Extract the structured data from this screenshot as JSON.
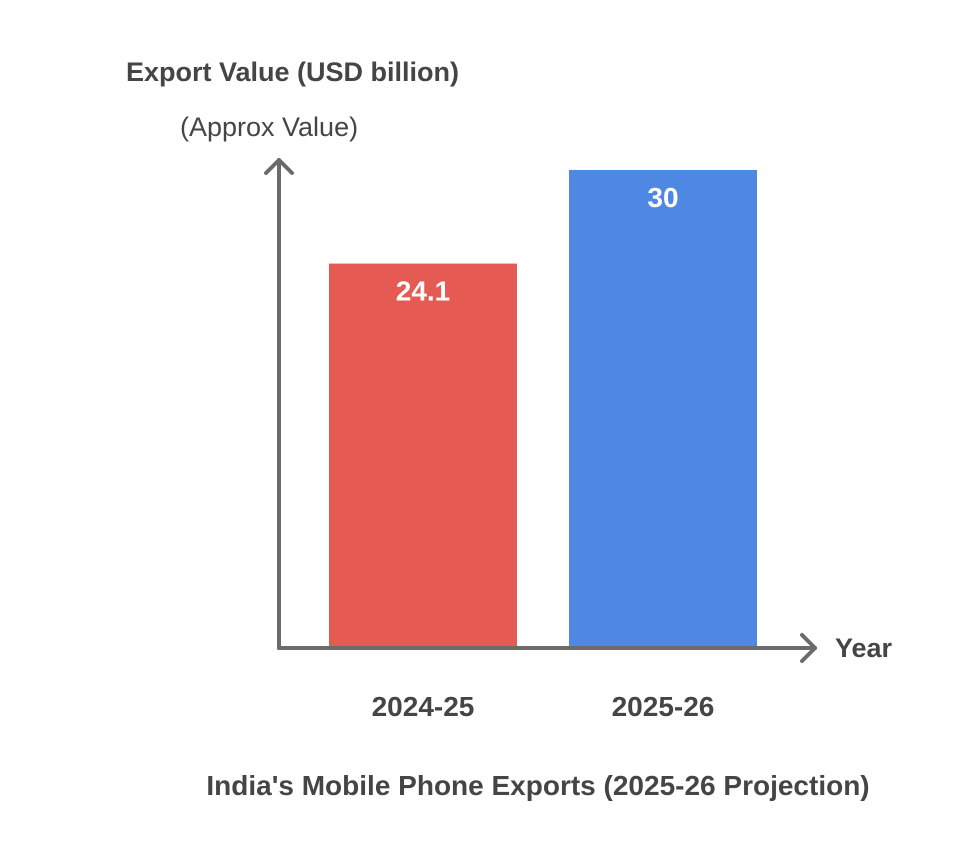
{
  "chart_data": {
    "type": "bar",
    "title": "India's Mobile Phone Exports (2025-26 Projection)",
    "ylabel": "Export Value (USD billion)",
    "ylabel_sub": "(Approx Value)",
    "xlabel": "Year",
    "categories": [
      "2024-25",
      "2025-26"
    ],
    "values": [
      24.1,
      30
    ],
    "data_labels": [
      "24.1",
      "30"
    ],
    "colors": [
      "#e55a53",
      "#4f88e3"
    ],
    "ylim": [
      0,
      30
    ],
    "grid": false,
    "legend": "none"
  }
}
